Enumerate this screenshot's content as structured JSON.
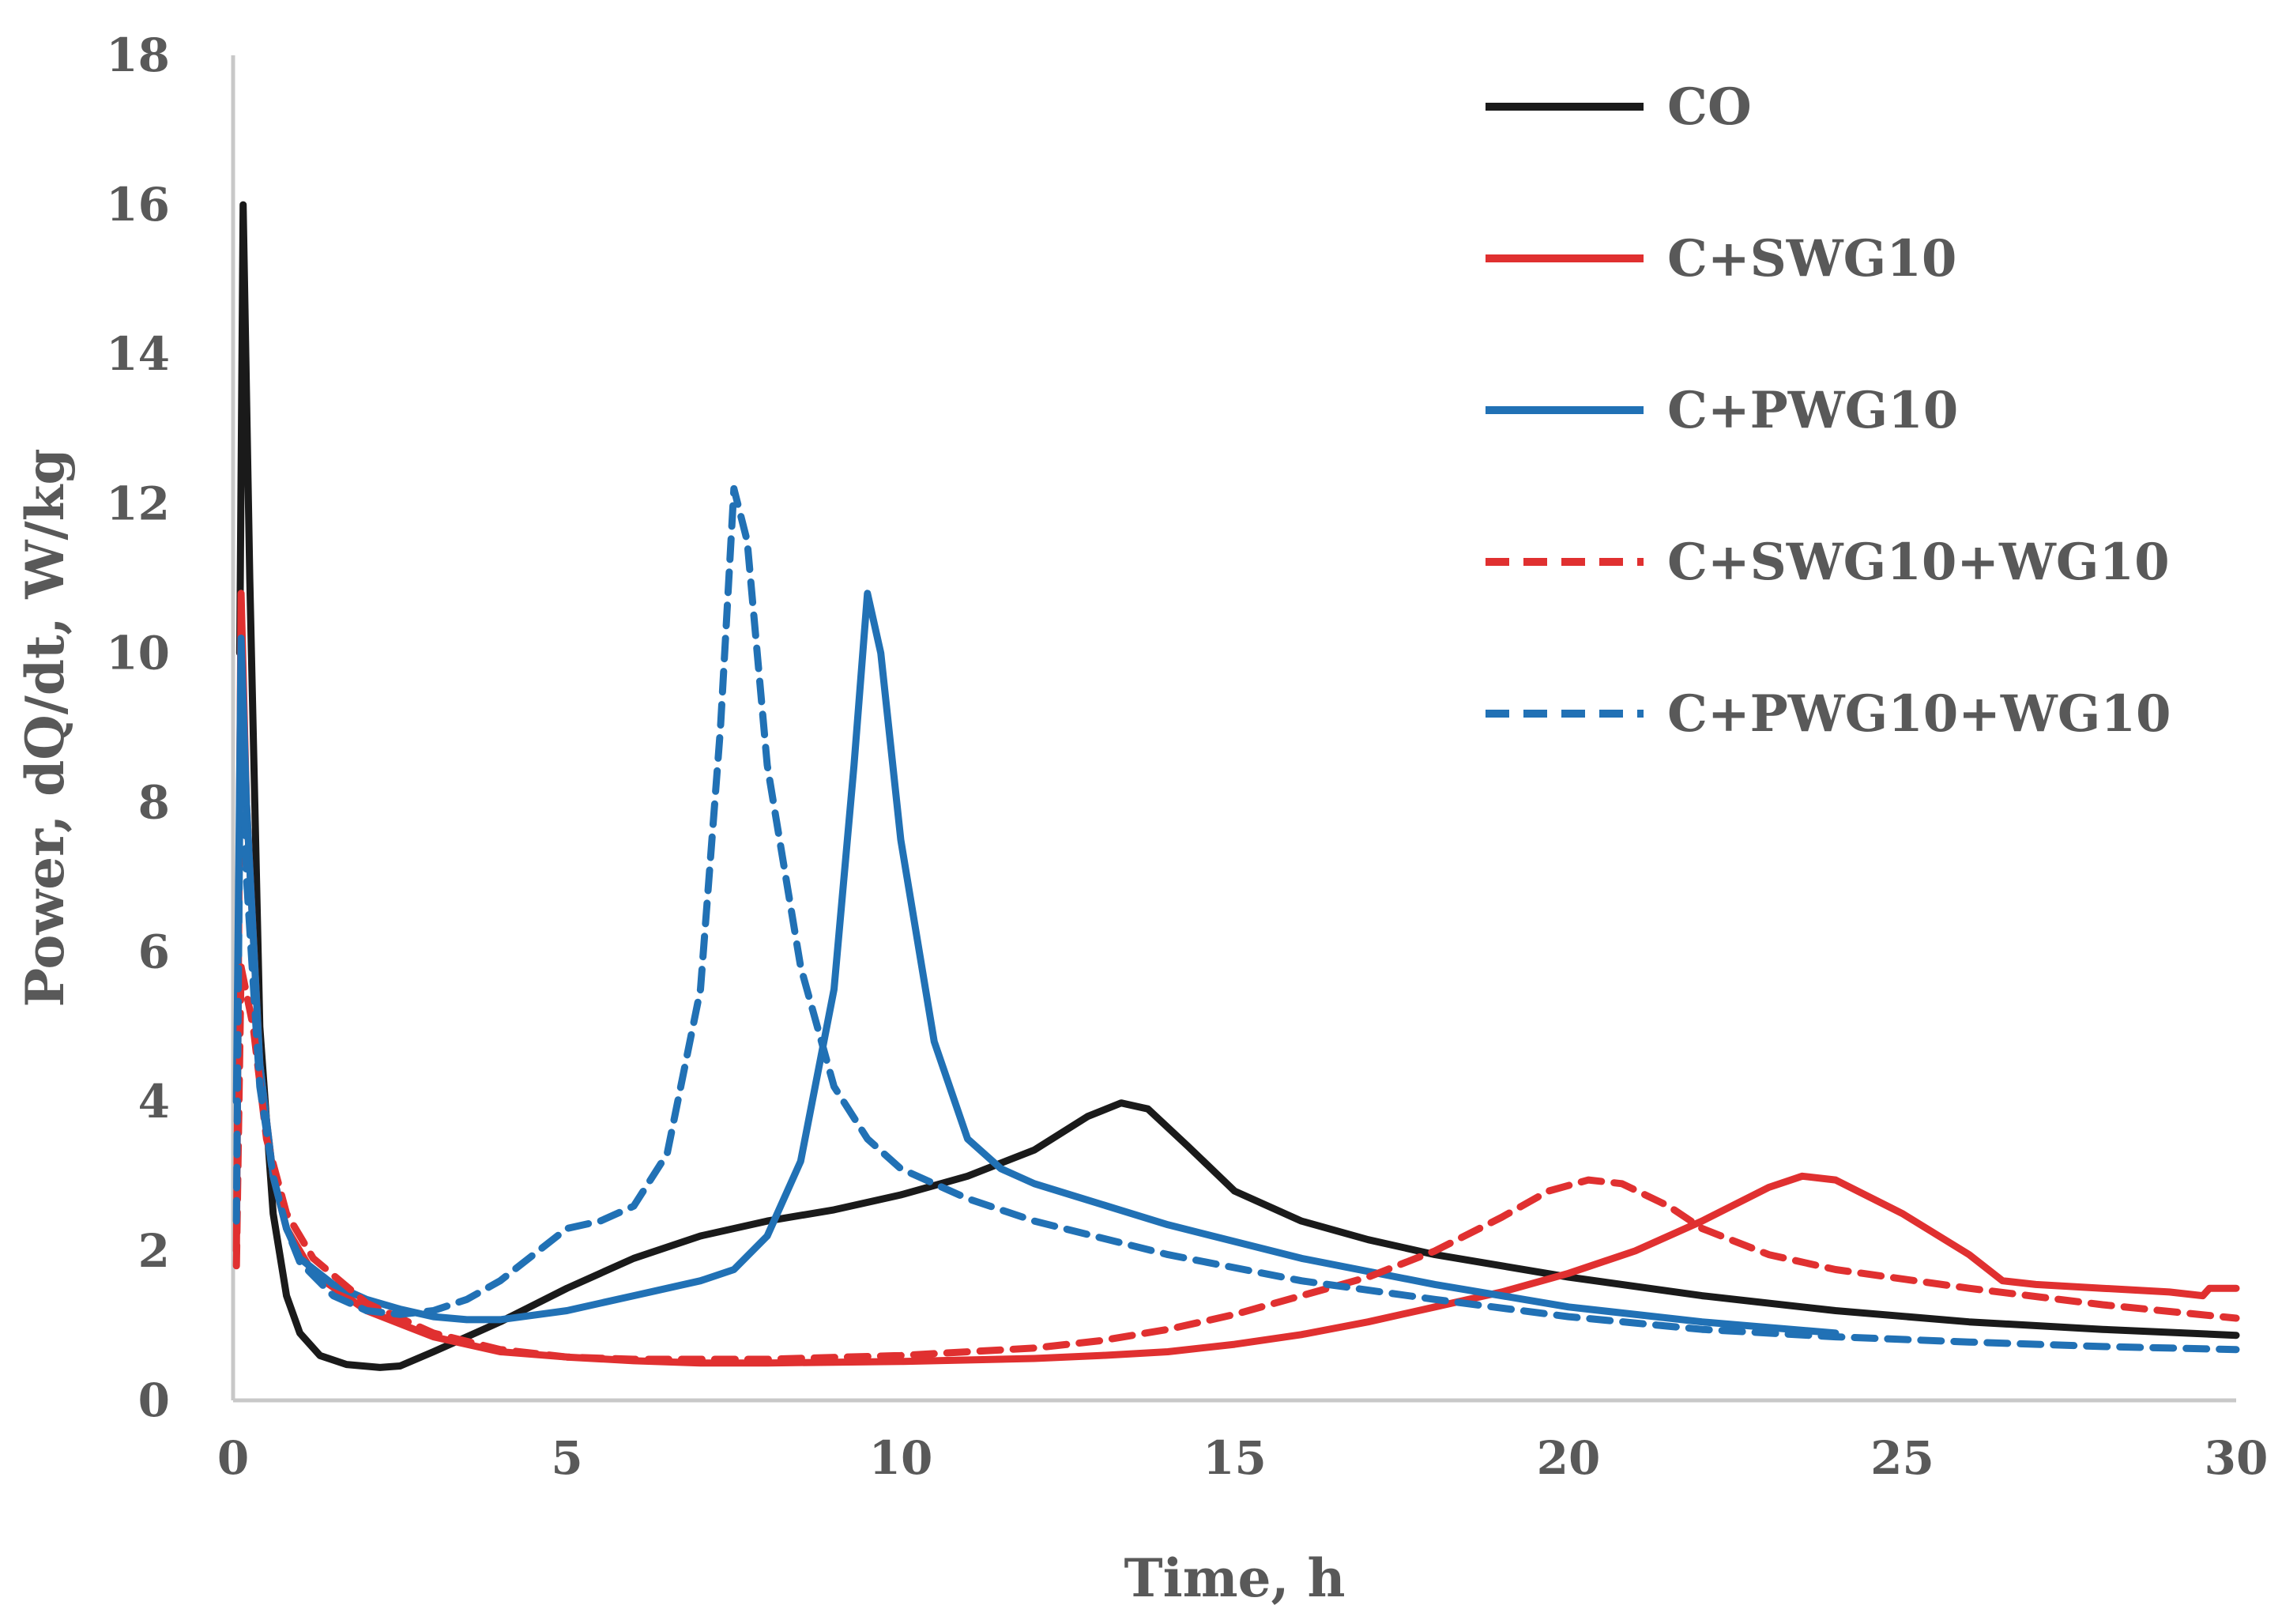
{
  "chart_data": {
    "type": "line",
    "title": "",
    "xlabel": "Time, h",
    "ylabel": "Power, dQ/dt, W/kg",
    "xlim": [
      0,
      30
    ],
    "ylim": [
      0,
      18
    ],
    "x_ticks": [
      0,
      5,
      10,
      15,
      20,
      25,
      30
    ],
    "y_ticks": [
      0,
      2,
      4,
      6,
      8,
      10,
      12,
      14,
      16,
      18
    ],
    "grid": false,
    "legend_position": "top-right",
    "series": [
      {
        "name": "CO",
        "color": "#1a1a1a",
        "dashed": false,
        "points": [
          [
            0.1,
            10
          ],
          [
            0.15,
            16
          ],
          [
            0.25,
            11
          ],
          [
            0.4,
            5
          ],
          [
            0.6,
            2.5
          ],
          [
            0.8,
            1.4
          ],
          [
            1.0,
            0.9
          ],
          [
            1.3,
            0.6
          ],
          [
            1.7,
            0.48
          ],
          [
            2.2,
            0.44
          ],
          [
            2.5,
            0.46
          ],
          [
            3,
            0.65
          ],
          [
            3.5,
            0.85
          ],
          [
            4,
            1.05
          ],
          [
            5,
            1.5
          ],
          [
            6,
            1.9
          ],
          [
            7,
            2.2
          ],
          [
            8,
            2.4
          ],
          [
            9,
            2.55
          ],
          [
            10,
            2.75
          ],
          [
            11,
            3.0
          ],
          [
            12,
            3.35
          ],
          [
            12.8,
            3.8
          ],
          [
            13.3,
            3.98
          ],
          [
            13.7,
            3.9
          ],
          [
            14.3,
            3.4
          ],
          [
            15,
            2.8
          ],
          [
            16,
            2.4
          ],
          [
            17,
            2.15
          ],
          [
            18,
            1.95
          ],
          [
            20,
            1.65
          ],
          [
            22,
            1.4
          ],
          [
            24,
            1.2
          ],
          [
            26,
            1.05
          ],
          [
            28,
            0.95
          ],
          [
            30,
            0.87
          ]
        ]
      },
      {
        "name": "C+SWG10",
        "color": "#e03030",
        "dashed": false,
        "points": [
          [
            0.05,
            2
          ],
          [
            0.12,
            10.8
          ],
          [
            0.2,
            8
          ],
          [
            0.4,
            4.5
          ],
          [
            0.6,
            3
          ],
          [
            0.8,
            2.3
          ],
          [
            1.2,
            1.7
          ],
          [
            2,
            1.2
          ],
          [
            3,
            0.85
          ],
          [
            4,
            0.65
          ],
          [
            5,
            0.58
          ],
          [
            6,
            0.53
          ],
          [
            7,
            0.5
          ],
          [
            8,
            0.5
          ],
          [
            10,
            0.52
          ],
          [
            12,
            0.56
          ],
          [
            13,
            0.6
          ],
          [
            14,
            0.65
          ],
          [
            15,
            0.75
          ],
          [
            16,
            0.88
          ],
          [
            17,
            1.05
          ],
          [
            18,
            1.25
          ],
          [
            19,
            1.45
          ],
          [
            20,
            1.7
          ],
          [
            21,
            2.0
          ],
          [
            22,
            2.4
          ],
          [
            23,
            2.85
          ],
          [
            23.5,
            3.0
          ],
          [
            24,
            2.95
          ],
          [
            25,
            2.5
          ],
          [
            26,
            1.95
          ],
          [
            26.5,
            1.6
          ],
          [
            27,
            1.55
          ],
          [
            28,
            1.5
          ],
          [
            29,
            1.45
          ],
          [
            29.5,
            1.4
          ],
          [
            29.6,
            1.5
          ],
          [
            30,
            1.5
          ]
        ]
      },
      {
        "name": "C+PWG10",
        "color": "#2171b5",
        "dashed": false,
        "points": [
          [
            0.05,
            4
          ],
          [
            0.12,
            10.2
          ],
          [
            0.2,
            8
          ],
          [
            0.4,
            4.5
          ],
          [
            0.6,
            3
          ],
          [
            0.8,
            2.3
          ],
          [
            1.0,
            1.9
          ],
          [
            1.5,
            1.55
          ],
          [
            2,
            1.35
          ],
          [
            2.5,
            1.22
          ],
          [
            3,
            1.12
          ],
          [
            3.5,
            1.08
          ],
          [
            4,
            1.08
          ],
          [
            5,
            1.2
          ],
          [
            6,
            1.4
          ],
          [
            7,
            1.6
          ],
          [
            7.5,
            1.75
          ],
          [
            8,
            2.2
          ],
          [
            8.5,
            3.2
          ],
          [
            9,
            5.5
          ],
          [
            9.3,
            8.5
          ],
          [
            9.5,
            10.8
          ],
          [
            9.7,
            10
          ],
          [
            10,
            7.5
          ],
          [
            10.5,
            4.8
          ],
          [
            11,
            3.5
          ],
          [
            11.5,
            3.1
          ],
          [
            12,
            2.9
          ],
          [
            14,
            2.35
          ],
          [
            16,
            1.9
          ],
          [
            18,
            1.55
          ],
          [
            20,
            1.25
          ],
          [
            22,
            1.05
          ],
          [
            24,
            0.9
          ]
        ]
      },
      {
        "name": "C+SWG10+WG10",
        "color": "#e03030",
        "dashed": true,
        "points": [
          [
            0.05,
            1.8
          ],
          [
            0.12,
            5.8
          ],
          [
            0.3,
            5
          ],
          [
            0.5,
            3.5
          ],
          [
            0.8,
            2.5
          ],
          [
            1.2,
            1.9
          ],
          [
            2,
            1.3
          ],
          [
            3,
            0.9
          ],
          [
            4,
            0.68
          ],
          [
            5,
            0.58
          ],
          [
            6,
            0.55
          ],
          [
            7,
            0.55
          ],
          [
            8,
            0.55
          ],
          [
            10,
            0.6
          ],
          [
            12,
            0.7
          ],
          [
            13,
            0.8
          ],
          [
            14,
            0.95
          ],
          [
            15,
            1.15
          ],
          [
            16,
            1.4
          ],
          [
            17,
            1.65
          ],
          [
            18,
            2.0
          ],
          [
            19,
            2.45
          ],
          [
            19.7,
            2.8
          ],
          [
            20.3,
            2.95
          ],
          [
            20.8,
            2.9
          ],
          [
            21.5,
            2.6
          ],
          [
            22,
            2.3
          ],
          [
            23,
            1.95
          ],
          [
            24,
            1.75
          ],
          [
            26,
            1.5
          ],
          [
            28,
            1.28
          ],
          [
            30,
            1.1
          ]
        ]
      },
      {
        "name": "C+PWG10+WG10",
        "color": "#2171b5",
        "dashed": true,
        "points": [
          [
            0.05,
            2.4
          ],
          [
            0.12,
            10
          ],
          [
            0.2,
            7
          ],
          [
            0.4,
            4.2
          ],
          [
            0.6,
            3
          ],
          [
            0.8,
            2.3
          ],
          [
            1.0,
            1.85
          ],
          [
            1.5,
            1.4
          ],
          [
            2,
            1.2
          ],
          [
            2.5,
            1.15
          ],
          [
            3,
            1.2
          ],
          [
            3.5,
            1.35
          ],
          [
            4,
            1.6
          ],
          [
            4.5,
            1.95
          ],
          [
            5,
            2.3
          ],
          [
            5.5,
            2.4
          ],
          [
            6,
            2.6
          ],
          [
            6.5,
            3.3
          ],
          [
            7,
            5.5
          ],
          [
            7.3,
            9
          ],
          [
            7.5,
            12.2
          ],
          [
            7.7,
            11.5
          ],
          [
            8,
            8.5
          ],
          [
            8.5,
            5.8
          ],
          [
            9,
            4.2
          ],
          [
            9.5,
            3.5
          ],
          [
            10,
            3.1
          ],
          [
            11,
            2.7
          ],
          [
            12,
            2.4
          ],
          [
            14,
            1.95
          ],
          [
            16,
            1.6
          ],
          [
            18,
            1.35
          ],
          [
            20,
            1.12
          ],
          [
            22,
            0.95
          ],
          [
            24,
            0.85
          ],
          [
            26,
            0.78
          ],
          [
            28,
            0.72
          ],
          [
            30,
            0.68
          ]
        ]
      }
    ]
  }
}
